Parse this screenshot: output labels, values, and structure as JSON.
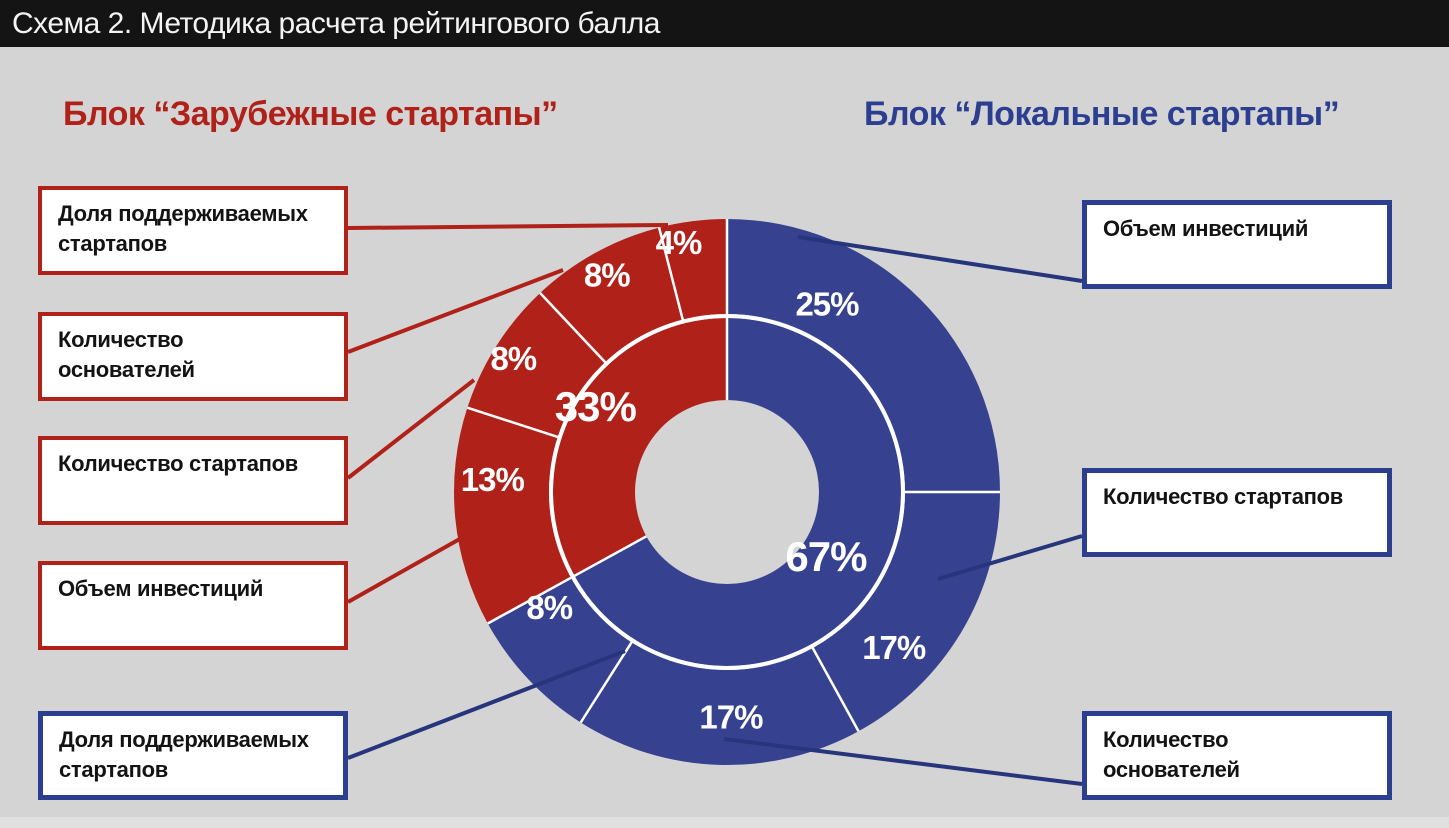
{
  "title_bar": {
    "title": "Схема 2. Методика расчета рейтингового балла"
  },
  "headings": {
    "foreign": "Блок “Зарубежные стартапы”",
    "local": "Блок “Локальные стартапы”"
  },
  "colors": {
    "background": "#d4d4d4",
    "red": "#b02119",
    "blue": "#36428f",
    "blue_border": "#2c3e8f",
    "leader_blue": "#27357c",
    "title_bg": "#141414",
    "bottom_strip": "#e0e0e0",
    "label_text": "#131313",
    "divider_white": "#ffffff"
  },
  "label_boxes": {
    "left": [
      {
        "text": "Доля поддерживаемых\nстартапов"
      },
      {
        "text": "Количество\nоснователей"
      },
      {
        "text": "Количество стартапов"
      },
      {
        "text": "Объем инвестиций"
      },
      {
        "text": "Доля поддерживаемых\nстартапов"
      }
    ],
    "right": [
      {
        "text": "Объем инвестиций"
      },
      {
        "text": "Количество стартапов"
      },
      {
        "text": "Количество\nоснователей"
      }
    ]
  },
  "chart_data": {
    "type": "pie",
    "subtype": "double-ring-donut",
    "title": "Методика расчета рейтингового балла",
    "legend_position": "none",
    "groups": [
      {
        "id": "foreign",
        "name": "Блок “Зарубежные стартапы”",
        "color": "#b02119",
        "total_share_pct": 33
      },
      {
        "id": "local",
        "name": "Блок “Локальные стартапы”",
        "color": "#36428f",
        "total_share_pct": 67
      }
    ],
    "inner_ring": [
      {
        "label": "67%",
        "value": 67,
        "group": "local"
      },
      {
        "label": "33%",
        "value": 33,
        "group": "foreign"
      }
    ],
    "outer_ring": [
      {
        "label": "25%",
        "value": 25,
        "group": "local",
        "category": "Объем инвестиций"
      },
      {
        "label": "17%",
        "value": 17,
        "group": "local",
        "category": "Количество стартапов"
      },
      {
        "label": "17%",
        "value": 17,
        "group": "local",
        "category": "Количество основателей"
      },
      {
        "label": "8%",
        "value": 8,
        "group": "local",
        "category": "Доля поддерживаемых стартапов"
      },
      {
        "label": "13%",
        "value": 13,
        "group": "foreign",
        "category": "Объем инвестиций"
      },
      {
        "label": "8%",
        "value": 8,
        "group": "foreign",
        "category": "Количество стартапов"
      },
      {
        "label": "8%",
        "value": 8,
        "group": "foreign",
        "category": "Количество основателей"
      },
      {
        "label": "4%",
        "value": 4,
        "group": "foreign",
        "category": "Доля поддерживаемых стартапов"
      }
    ]
  }
}
